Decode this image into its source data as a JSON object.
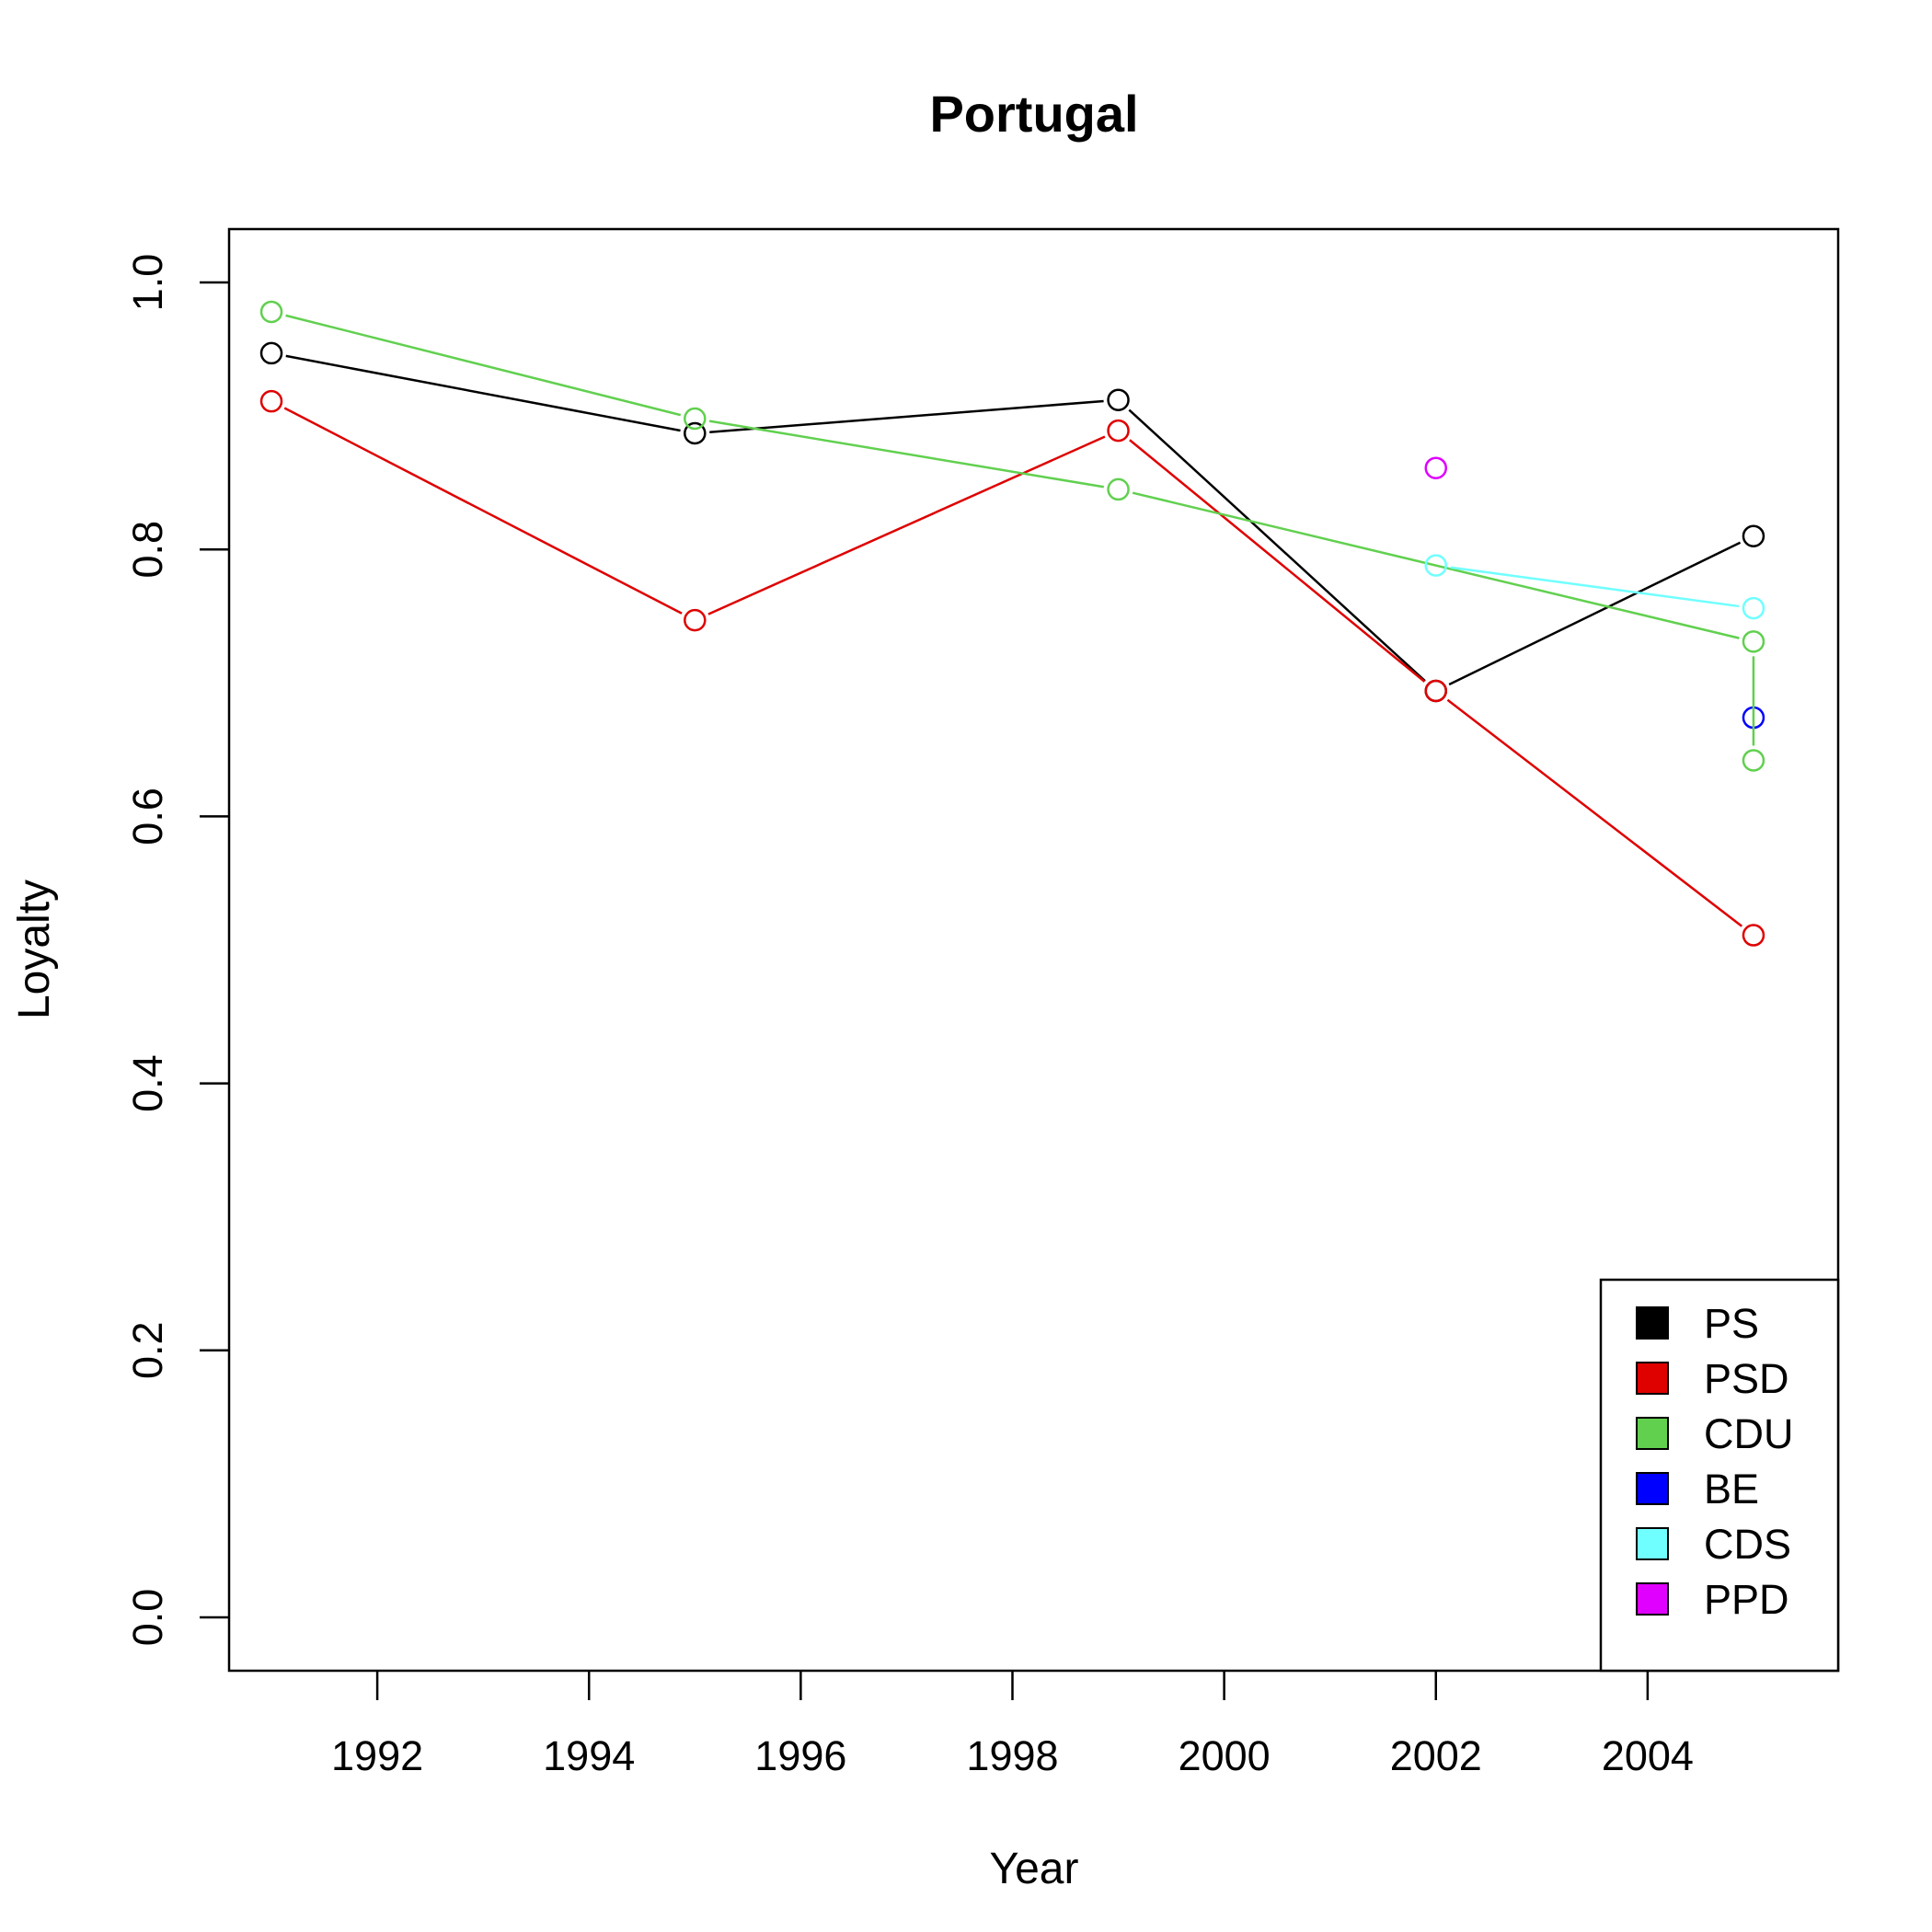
{
  "chart_data": {
    "type": "line",
    "title": "Portugal",
    "xlabel": "Year",
    "ylabel": "Loyalty",
    "xlim": [
      1990.6,
      2005.8
    ],
    "ylim": [
      -0.04,
      1.04
    ],
    "x_ticks": [
      1992,
      1994,
      1996,
      1998,
      2000,
      2002,
      2004
    ],
    "x_tick_labels": [
      "1992",
      "1994",
      "1996",
      "1998",
      "2000",
      "2002",
      "2004"
    ],
    "y_ticks": [
      0.0,
      0.2,
      0.4,
      0.6,
      0.8,
      1.0
    ],
    "y_tick_labels": [
      "0.0",
      "0.2",
      "0.4",
      "0.6",
      "0.8",
      "1.0"
    ],
    "legend_position": "bottom-right",
    "grid": false,
    "series": [
      {
        "name": "PS",
        "color": "#000000",
        "x": [
          1991,
          1995,
          1999,
          2002,
          2005
        ],
        "y": [
          0.947,
          0.887,
          0.912,
          0.694,
          0.81
        ]
      },
      {
        "name": "PSD",
        "color": "#DF0000",
        "x": [
          1991,
          1995,
          1999,
          2002,
          2005
        ],
        "y": [
          0.911,
          0.747,
          0.889,
          0.694,
          0.511
        ]
      },
      {
        "name": "CDU",
        "color": "#61D04F",
        "x": [
          1991,
          1995,
          1999,
          2005
        ],
        "y": [
          0.978,
          0.898,
          0.845,
          0.731
        ]
      },
      {
        "name": "BE",
        "color": "#0000FF",
        "x": [
          2005
        ],
        "y": [
          0.674
        ]
      },
      {
        "name": "CDS",
        "color": "#70FFFF",
        "x": [
          2002,
          2005
        ],
        "y": [
          0.788,
          0.756
        ]
      },
      {
        "name": "PPD",
        "color": "#DF00FF",
        "x": [
          2002
        ],
        "y": [
          0.861
        ]
      }
    ],
    "extra_points": [
      {
        "series": "CDU",
        "x": 2005,
        "y": 0.642,
        "connected_to_previous": true
      }
    ]
  }
}
